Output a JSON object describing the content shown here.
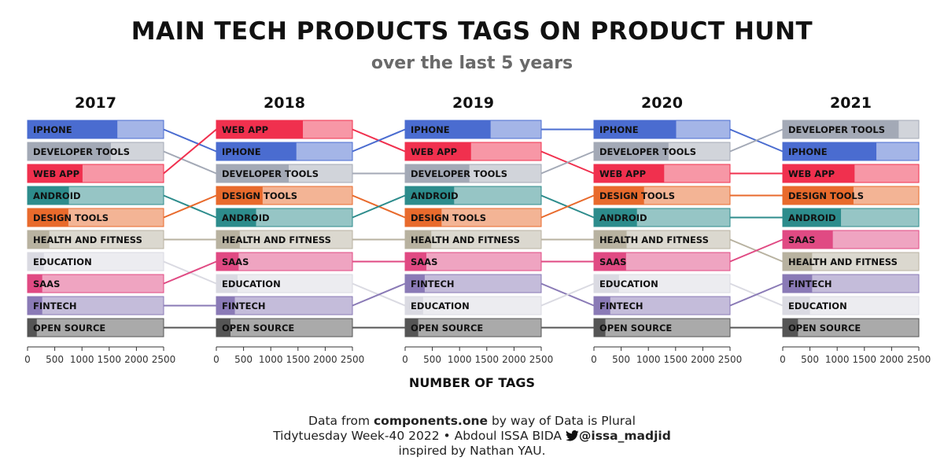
{
  "title": "MAIN TECH PRODUCTS TAGS ON PRODUCT HUNT",
  "subtitle": "over the last 5 years",
  "footer": {
    "line1_prefix": "Data from ",
    "line1_bold": "components.one",
    "line1_suffix": " by way of Data is Plural",
    "line2_prefix": "Tidytuesday Week-40 2022 • Abdoul ISSA BIDA ",
    "line2_handle": "@issa_madjid",
    "line3": "inspired by Nathan YAU.",
    "icon": "bird-icon"
  },
  "colors": {
    "IPHONE": "#4a6cd0",
    "DEVELOPER TOOLS": "#a3a9b6",
    "WEB APP": "#f0304e",
    "ANDROID": "#2d8c8c",
    "DESIGN TOOLS": "#e86a2c",
    "HEALTH AND FITNESS": "#b8b2a0",
    "EDUCATION": "#dadae2",
    "SAAS": "#e04a83",
    "FINTECH": "#8a7ab6",
    "OPEN SOURCE": "#555555"
  },
  "chart_data": {
    "type": "bar",
    "subtype": "ranked bar panels with bump lines",
    "xlabel": "NUMBER OF TAGS",
    "xlim": [
      0,
      2500
    ],
    "x_ticks": [
      0,
      500,
      1000,
      1500,
      2000,
      2500
    ],
    "max_bar": 2500,
    "years": [
      {
        "year": "2017",
        "values": [
          {
            "name": "IPHONE",
            "value": 1650
          },
          {
            "name": "DEVELOPER TOOLS",
            "value": 1530
          },
          {
            "name": "WEB APP",
            "value": 1010
          },
          {
            "name": "ANDROID",
            "value": 760
          },
          {
            "name": "DESIGN TOOLS",
            "value": 750
          },
          {
            "name": "HEALTH AND FITNESS",
            "value": 400
          },
          {
            "name": "EDUCATION",
            "value": 300
          },
          {
            "name": "SAAS",
            "value": 270
          },
          {
            "name": "FINTECH",
            "value": 270
          },
          {
            "name": "OPEN SOURCE",
            "value": 170
          }
        ]
      },
      {
        "year": "2018",
        "values": [
          {
            "name": "WEB APP",
            "value": 1590
          },
          {
            "name": "IPHONE",
            "value": 1470
          },
          {
            "name": "DEVELOPER TOOLS",
            "value": 1330
          },
          {
            "name": "DESIGN TOOLS",
            "value": 850
          },
          {
            "name": "ANDROID",
            "value": 730
          },
          {
            "name": "HEALTH AND FITNESS",
            "value": 430
          },
          {
            "name": "SAAS",
            "value": 410
          },
          {
            "name": "EDUCATION",
            "value": 390
          },
          {
            "name": "FINTECH",
            "value": 340
          },
          {
            "name": "OPEN SOURCE",
            "value": 260
          }
        ]
      },
      {
        "year": "2019",
        "values": [
          {
            "name": "IPHONE",
            "value": 1570
          },
          {
            "name": "WEB APP",
            "value": 1210
          },
          {
            "name": "DEVELOPER TOOLS",
            "value": 1180
          },
          {
            "name": "ANDROID",
            "value": 900
          },
          {
            "name": "DESIGN TOOLS",
            "value": 670
          },
          {
            "name": "HEALTH AND FITNESS",
            "value": 480
          },
          {
            "name": "SAAS",
            "value": 390
          },
          {
            "name": "FINTECH",
            "value": 360
          },
          {
            "name": "EDUCATION",
            "value": 330
          },
          {
            "name": "OPEN SOURCE",
            "value": 240
          }
        ]
      },
      {
        "year": "2020",
        "values": [
          {
            "name": "IPHONE",
            "value": 1510
          },
          {
            "name": "DEVELOPER TOOLS",
            "value": 1370
          },
          {
            "name": "WEB APP",
            "value": 1290
          },
          {
            "name": "DESIGN TOOLS",
            "value": 920
          },
          {
            "name": "ANDROID",
            "value": 790
          },
          {
            "name": "HEALTH AND FITNESS",
            "value": 600
          },
          {
            "name": "SAAS",
            "value": 590
          },
          {
            "name": "EDUCATION",
            "value": 460
          },
          {
            "name": "FINTECH",
            "value": 300
          },
          {
            "name": "OPEN SOURCE",
            "value": 210
          }
        ]
      },
      {
        "year": "2021",
        "values": [
          {
            "name": "DEVELOPER TOOLS",
            "value": 2130
          },
          {
            "name": "IPHONE",
            "value": 1720
          },
          {
            "name": "WEB APP",
            "value": 1320
          },
          {
            "name": "DESIGN TOOLS",
            "value": 1300
          },
          {
            "name": "ANDROID",
            "value": 1070
          },
          {
            "name": "SAAS",
            "value": 920
          },
          {
            "name": "HEALTH AND FITNESS",
            "value": 540
          },
          {
            "name": "FINTECH",
            "value": 540
          },
          {
            "name": "EDUCATION",
            "value": 500
          },
          {
            "name": "OPEN SOURCE",
            "value": 280
          }
        ]
      }
    ]
  }
}
